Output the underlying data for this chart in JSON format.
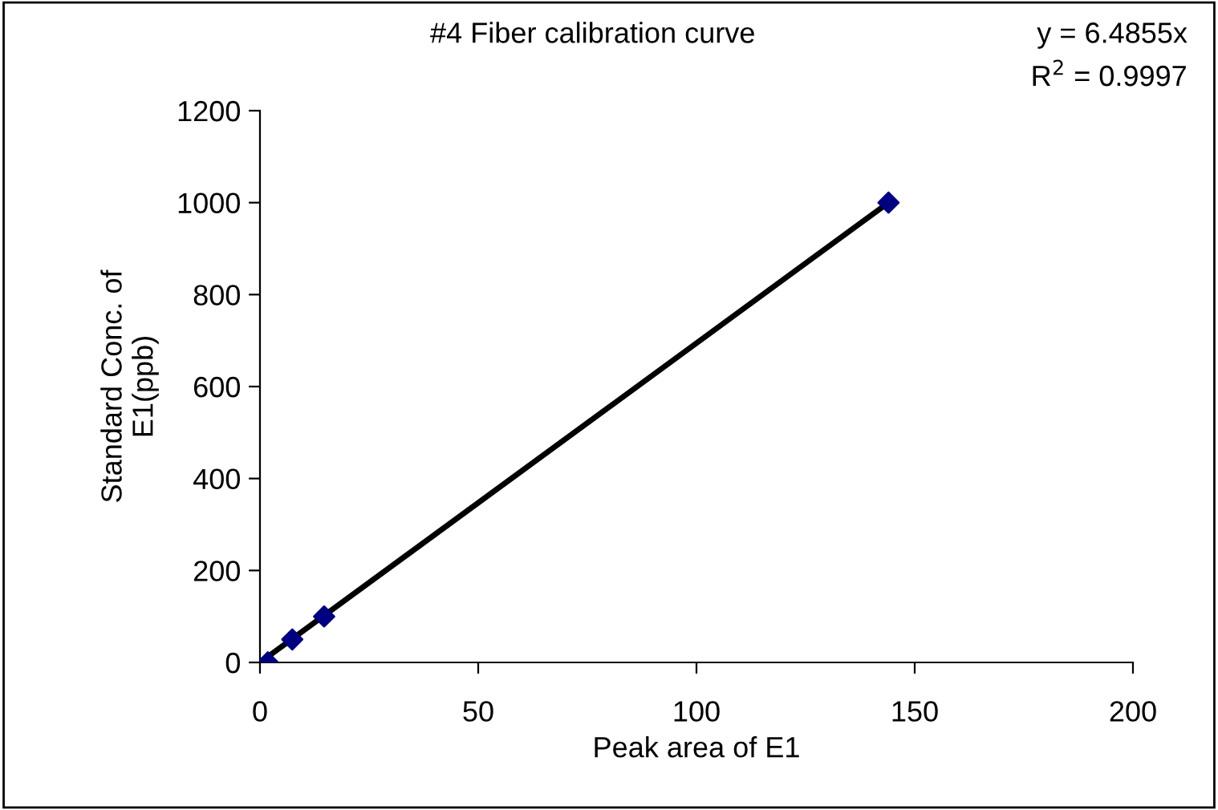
{
  "chart_data": {
    "type": "scatter",
    "title": "#4 Fiber calibration curve",
    "xlabel": "Peak area of E1",
    "ylabel": "Standard Conc. of\nE1(ppb)",
    "annotations": [
      "y = 6.4855x",
      "R$^{2}$ = 0.9997"
    ],
    "xlim": [
      0,
      200
    ],
    "xticks": [
      0,
      50,
      100,
      150,
      200
    ],
    "ylim": [
      0,
      1200
    ],
    "yticks": [
      0,
      200,
      400,
      600,
      800,
      1000,
      1200
    ],
    "grid": false,
    "legend": false,
    "series": [
      {
        "color": "#000080",
        "marker": "diamond",
        "x": [
          1.8,
          7.4,
          14.7,
          144
        ],
        "values": [
          0,
          50,
          100,
          1000
        ]
      },
      {
        "type": "line",
        "color": "#000000",
        "x": [
          0,
          144
        ],
        "values": [
          0,
          1000
        ],
        "line_style": "solid"
      }
    ]
  }
}
